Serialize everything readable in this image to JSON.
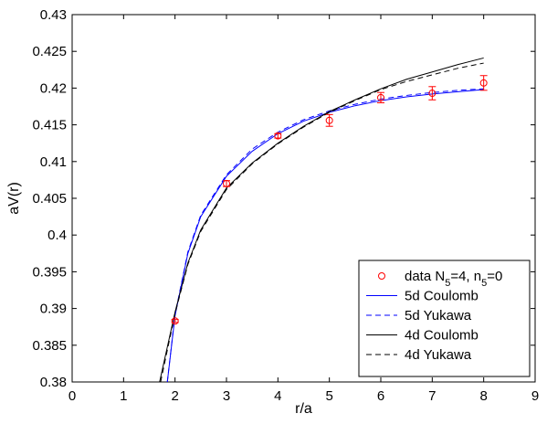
{
  "chart_data": {
    "type": "line",
    "title": "",
    "xlabel": "r/a",
    "ylabel": "aV(r)",
    "xlim": [
      0,
      9
    ],
    "ylim": [
      0.38,
      0.43
    ],
    "xticks": [
      0,
      1,
      2,
      3,
      4,
      5,
      6,
      7,
      8,
      9
    ],
    "yticks": [
      0.38,
      0.385,
      0.39,
      0.395,
      0.4,
      0.405,
      0.41,
      0.415,
      0.42,
      0.425,
      0.43
    ],
    "xtick_labels": [
      "0",
      "1",
      "2",
      "3",
      "4",
      "5",
      "6",
      "7",
      "8",
      "9"
    ],
    "ytick_labels": [
      "0.38",
      "0.385",
      "0.39",
      "0.395",
      "0.4",
      "0.405",
      "0.41",
      "0.415",
      "0.42",
      "0.425",
      "0.43"
    ],
    "grid": false,
    "legend_position": "bottom-right",
    "data_series": {
      "name": "data N_5=4, n_5=0",
      "legend_parts": {
        "pre": "data N",
        "sub1": "5",
        "mid": "=4, n",
        "sub2": "5",
        "post": "=0"
      },
      "color": "#ff0000",
      "marker": "circle",
      "x": [
        2,
        3,
        4,
        5,
        6,
        7,
        8
      ],
      "y": [
        0.3883,
        0.407,
        0.4135,
        0.4156,
        0.4187,
        0.4193,
        0.4207
      ],
      "err": [
        0.0002,
        0.0004,
        0.0003,
        0.0008,
        0.0007,
        0.0009,
        0.001
      ]
    },
    "series": [
      {
        "name": "5d Coulomb",
        "color": "#0000ff",
        "dash": "solid",
        "x": [
          1.85,
          2,
          2.25,
          2.5,
          3,
          3.5,
          4,
          4.5,
          5,
          5.5,
          6,
          6.5,
          7,
          7.5,
          8
        ],
        "y": [
          0.38,
          0.389,
          0.3975,
          0.4025,
          0.408,
          0.4114,
          0.4138,
          0.4155,
          0.4167,
          0.4176,
          0.4183,
          0.4188,
          0.4192,
          0.4195,
          0.4198
        ]
      },
      {
        "name": "5d Yukawa",
        "color": "#0000ff",
        "dash": "dashed",
        "x": [
          1.85,
          2,
          2.25,
          2.5,
          3,
          3.5,
          4,
          4.5,
          5,
          5.5,
          6,
          6.5,
          7,
          7.5,
          8
        ],
        "y": [
          0.38,
          0.3892,
          0.3977,
          0.4027,
          0.4082,
          0.4117,
          0.414,
          0.4157,
          0.4169,
          0.4178,
          0.4185,
          0.419,
          0.4194,
          0.4197,
          0.4199
        ]
      },
      {
        "name": "4d Coulomb",
        "color": "#000000",
        "dash": "solid",
        "x": [
          1.7,
          2,
          2.25,
          2.5,
          3,
          3.5,
          4,
          4.5,
          5,
          5.5,
          6,
          6.5,
          7,
          7.5,
          8
        ],
        "y": [
          0.38,
          0.3895,
          0.3962,
          0.4007,
          0.4064,
          0.4098,
          0.4125,
          0.4148,
          0.4168,
          0.4184,
          0.4199,
          0.4212,
          0.4222,
          0.4232,
          0.4241
        ]
      },
      {
        "name": "4d Yukawa",
        "color": "#000000",
        "dash": "dashed",
        "x": [
          1.72,
          2,
          2.25,
          2.5,
          3,
          3.5,
          4,
          4.5,
          5,
          5.5,
          6,
          6.5,
          7,
          7.5,
          8
        ],
        "y": [
          0.38,
          0.3893,
          0.396,
          0.4005,
          0.4062,
          0.4097,
          0.4124,
          0.4147,
          0.4167,
          0.4183,
          0.4198,
          0.4209,
          0.4218,
          0.4227,
          0.4234
        ]
      }
    ]
  }
}
